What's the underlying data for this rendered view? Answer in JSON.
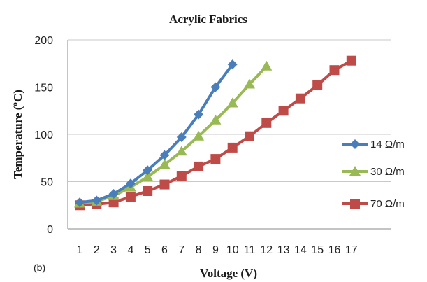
{
  "chart_data": {
    "type": "line",
    "title": "Acrylic Fabrics",
    "xlabel": "Voltage (V)",
    "ylabel": "Temperature (ºC)",
    "panel_label": "(b)",
    "categories": [
      "1",
      "2",
      "3",
      "4",
      "5",
      "6",
      "7",
      "8",
      "9",
      "10",
      "11",
      "12",
      "13",
      "14",
      "15",
      "16",
      "17"
    ],
    "xlim": [
      1,
      17
    ],
    "ylim": [
      0,
      200
    ],
    "yticks": [
      "0",
      "50",
      "100",
      "150",
      "200"
    ],
    "grid": "horizontal",
    "legend_position": "right",
    "series": [
      {
        "name": "14 Ω/m",
        "color": "#4a7ebb",
        "marker": "diamond",
        "x": [
          1,
          2,
          3,
          4,
          5,
          6,
          7,
          8,
          9,
          10
        ],
        "values": [
          28,
          30,
          37,
          48,
          62,
          78,
          97,
          121,
          150,
          174
        ]
      },
      {
        "name": "30 Ω/m",
        "color": "#98b954",
        "marker": "triangle",
        "x": [
          1,
          2,
          3,
          4,
          5,
          6,
          7,
          8,
          9,
          10,
          11,
          12
        ],
        "values": [
          27,
          29,
          35,
          44,
          55,
          68,
          82,
          98,
          115,
          133,
          153,
          172
        ]
      },
      {
        "name": "70 Ω/m",
        "color": "#be4b48",
        "marker": "square",
        "x": [
          1,
          2,
          3,
          4,
          5,
          6,
          7,
          8,
          9,
          10,
          11,
          12,
          13,
          14,
          15,
          16,
          17
        ],
        "values": [
          25,
          26,
          28,
          34,
          40,
          47,
          56,
          66,
          74,
          86,
          98,
          112,
          125,
          138,
          152,
          168,
          178
        ]
      }
    ]
  }
}
